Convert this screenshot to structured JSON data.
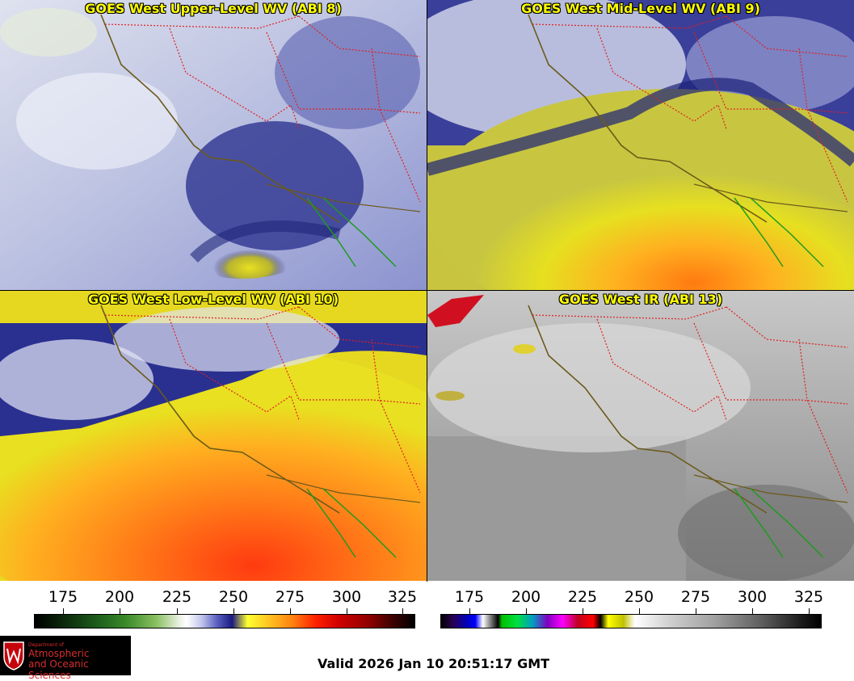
{
  "panels": [
    {
      "title": "GOES West Upper-Level WV (ABI 8)"
    },
    {
      "title": "GOES West Mid-Level WV (ABI 9)"
    },
    {
      "title": "GOES West Low-Level WV (ABI 10)"
    },
    {
      "title": "GOES West IR (ABI 13)"
    }
  ],
  "colorbars": {
    "wv": {
      "ticks": [
        "175",
        "200",
        "225",
        "250",
        "275",
        "300",
        "325"
      ]
    },
    "ir": {
      "ticks": [
        "175",
        "200",
        "225",
        "250",
        "275",
        "300",
        "325"
      ]
    }
  },
  "logo": {
    "dept": "Department of",
    "line1": "Atmospheric",
    "line2": "and Oceanic Sciences"
  },
  "valid_time": "Valid 2026 Jan 10 20:51:17 GMT",
  "colors": {
    "state_border": "#e02020",
    "coast": "#6b5a1a",
    "mexico_coast": "#1f9a1f",
    "title": "#ffff00"
  }
}
